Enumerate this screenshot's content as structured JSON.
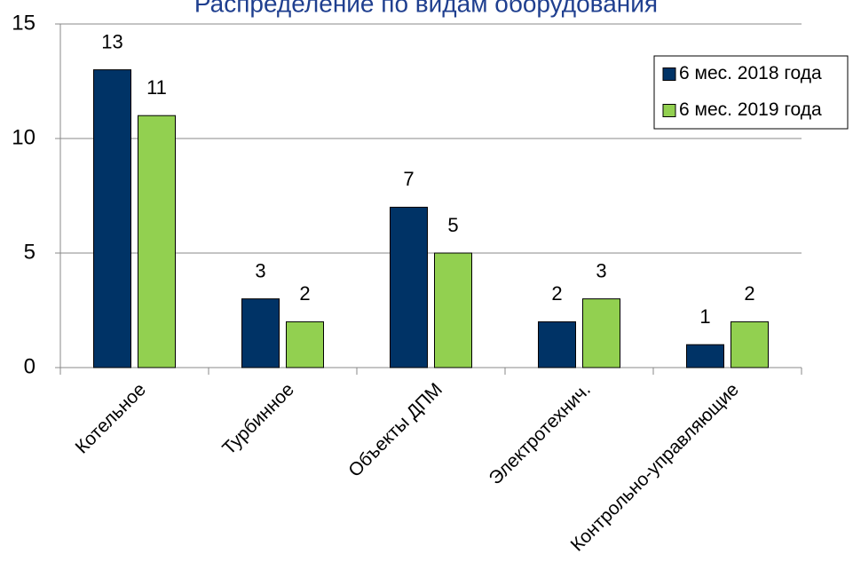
{
  "chart_data": {
    "type": "bar",
    "title": "Распределение по видам оборудования",
    "categories": [
      "Котельное",
      "Турбинное",
      "Объекты ДПМ",
      "Электротехнич.",
      "Контрольно-управляющие"
    ],
    "series": [
      {
        "name": "6 мес. 2018 года",
        "color": "#003366",
        "values": [
          13,
          3,
          7,
          2,
          1
        ]
      },
      {
        "name": "6 мес. 2019 года",
        "color": "#92d050",
        "values": [
          11,
          2,
          5,
          3,
          2
        ]
      }
    ],
    "ylim": [
      0,
      15
    ],
    "yticks": [
      0,
      5,
      10,
      15
    ],
    "grid": true,
    "legend": "upper right"
  }
}
